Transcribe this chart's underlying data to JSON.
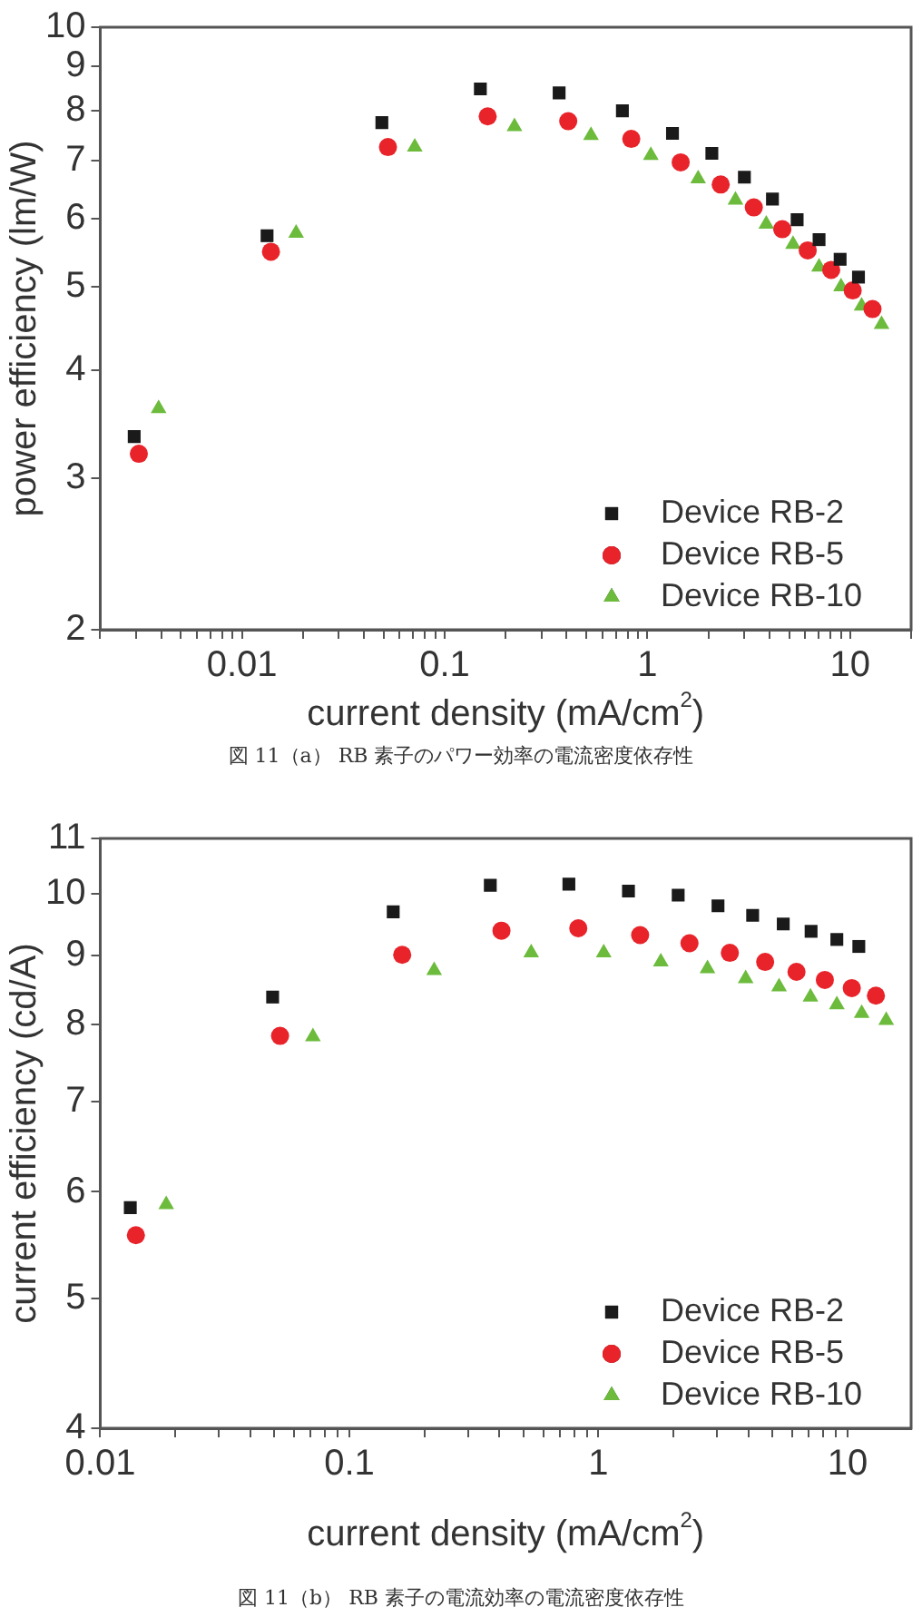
{
  "chart_data": [
    {
      "type": "scatter",
      "xlabel": "current density (mA/cm$^{2}$)",
      "ylabel": "power efficiency (lm/W)",
      "annotations": [
        "図 11（a） RB 素子のパワー効率の電流密度依存性"
      ],
      "log": "xy",
      "grid": false,
      "legend": "bottom right",
      "xlim": [
        0.002,
        20
      ],
      "ylim": [
        2,
        10
      ],
      "xticks": [
        {
          "value": 0.002,
          "label": null
        },
        {
          "value": 0.003,
          "label": null
        },
        {
          "value": 0.004,
          "label": null
        },
        {
          "value": 0.005,
          "label": null
        },
        {
          "value": 0.006,
          "label": null
        },
        {
          "value": 0.007,
          "label": null
        },
        {
          "value": 0.008,
          "label": null
        },
        {
          "value": 0.009,
          "label": null
        },
        0.01,
        {
          "value": 0.02,
          "label": null
        },
        {
          "value": 0.03,
          "label": null
        },
        {
          "value": 0.04,
          "label": null
        },
        {
          "value": 0.05,
          "label": null
        },
        {
          "value": 0.06,
          "label": null
        },
        {
          "value": 0.07,
          "label": null
        },
        {
          "value": 0.08,
          "label": null
        },
        {
          "value": 0.09,
          "label": null
        },
        0.1,
        {
          "value": 0.2,
          "label": null
        },
        {
          "value": 0.3,
          "label": null
        },
        {
          "value": 0.4,
          "label": null
        },
        {
          "value": 0.5,
          "label": null
        },
        {
          "value": 0.6,
          "label": null
        },
        {
          "value": 0.7,
          "label": null
        },
        {
          "value": 0.8,
          "label": null
        },
        {
          "value": 0.9,
          "label": null
        },
        1,
        {
          "value": 2,
          "label": null
        },
        {
          "value": 3,
          "label": null
        },
        {
          "value": 4,
          "label": null
        },
        {
          "value": 5,
          "label": null
        },
        {
          "value": 6,
          "label": null
        },
        {
          "value": 7,
          "label": null
        },
        {
          "value": 8,
          "label": null
        },
        {
          "value": 9,
          "label": null
        },
        10,
        {
          "value": 20,
          "label": null
        }
      ],
      "yticks": [
        2,
        3,
        4,
        5,
        6,
        7,
        8,
        9,
        10
      ],
      "series": [
        {
          "name": "Device RB-2",
          "color": "#1a1a1a",
          "marker": "square",
          "x": [
            0.00294,
            0.0133,
            0.049,
            0.15,
            0.367,
            0.753,
            1.33,
            2.08,
            3.01,
            4.14,
            5.48,
            7.03,
            8.93,
            11.0
          ],
          "values": [
            3.35,
            5.73,
            7.75,
            8.48,
            8.39,
            8.0,
            7.53,
            7.14,
            6.7,
            6.32,
            5.98,
            5.67,
            5.38,
            5.13
          ]
        },
        {
          "name": "Device RB-5",
          "color": "#e8232a",
          "marker": "circle",
          "x": [
            0.0031,
            0.0139,
            0.0525,
            0.163,
            0.407,
            0.833,
            1.46,
            2.3,
            3.35,
            4.63,
            6.18,
            8.07,
            10.3,
            12.9
          ],
          "values": [
            3.2,
            5.49,
            7.26,
            7.88,
            7.78,
            7.42,
            6.97,
            6.57,
            6.18,
            5.83,
            5.51,
            5.23,
            4.95,
            4.71
          ]
        },
        {
          "name": "Device RB-10",
          "color": "#6cbb3c",
          "marker": "triangle",
          "x": [
            0.00388,
            0.0185,
            0.0712,
            0.221,
            0.527,
            1.04,
            1.78,
            2.72,
            3.86,
            5.23,
            7.03,
            9.02,
            11.4,
            14.3
          ],
          "values": [
            3.61,
            5.77,
            7.26,
            7.67,
            7.49,
            7.1,
            6.67,
            6.3,
            5.91,
            5.6,
            5.27,
            5.0,
            4.75,
            4.52
          ]
        }
      ]
    },
    {
      "type": "scatter",
      "xlabel": "current density (mA/cm$^{2}$)",
      "ylabel": "current efficiency (cd/A)",
      "annotations": [
        "図 11（b） RB 素子の電流効率の電流密度依存性"
      ],
      "log": "xy",
      "grid": false,
      "legend": "bottom right",
      "xlim": [
        0.01,
        18
      ],
      "ylim": [
        4,
        11
      ],
      "xticks": [
        0.01,
        {
          "value": 0.02,
          "label": null
        },
        {
          "value": 0.03,
          "label": null
        },
        {
          "value": 0.04,
          "label": null
        },
        {
          "value": 0.05,
          "label": null
        },
        {
          "value": 0.06,
          "label": null
        },
        {
          "value": 0.07,
          "label": null
        },
        {
          "value": 0.08,
          "label": null
        },
        {
          "value": 0.09,
          "label": null
        },
        0.1,
        {
          "value": 0.2,
          "label": null
        },
        {
          "value": 0.3,
          "label": null
        },
        {
          "value": 0.4,
          "label": null
        },
        {
          "value": 0.5,
          "label": null
        },
        {
          "value": 0.6,
          "label": null
        },
        {
          "value": 0.7,
          "label": null
        },
        {
          "value": 0.8,
          "label": null
        },
        {
          "value": 0.9,
          "label": null
        },
        1,
        {
          "value": 2,
          "label": null
        },
        {
          "value": 3,
          "label": null
        },
        {
          "value": 4,
          "label": null
        },
        {
          "value": 5,
          "label": null
        },
        {
          "value": 6,
          "label": null
        },
        {
          "value": 7,
          "label": null
        },
        {
          "value": 8,
          "label": null
        },
        {
          "value": 9,
          "label": null
        },
        10
      ],
      "yticks": [
        4,
        5,
        6,
        7,
        8,
        9,
        10,
        11
      ],
      "series": [
        {
          "name": "Device RB-2",
          "color": "#1a1a1a",
          "marker": "square",
          "x": [
            0.0132,
            0.0492,
            0.15,
            0.368,
            0.761,
            1.32,
            2.09,
            3.02,
            4.16,
            5.52,
            7.14,
            9.06,
            11.1
          ],
          "values": [
            5.84,
            8.38,
            9.7,
            10.15,
            10.17,
            10.05,
            9.98,
            9.8,
            9.64,
            9.5,
            9.38,
            9.25,
            9.14
          ]
        },
        {
          "name": "Device RB-5",
          "color": "#e8232a",
          "marker": "circle",
          "x": [
            0.0139,
            0.0527,
            0.163,
            0.408,
            0.83,
            1.47,
            2.32,
            3.37,
            4.67,
            6.24,
            8.11,
            10.4,
            13.0
          ],
          "values": [
            5.57,
            7.84,
            9.01,
            9.39,
            9.43,
            9.32,
            9.19,
            9.04,
            8.9,
            8.75,
            8.63,
            8.51,
            8.4
          ]
        },
        {
          "name": "Device RB-10",
          "color": "#6cbb3c",
          "marker": "triangle",
          "x": [
            0.0184,
            0.0714,
            0.219,
            0.537,
            1.05,
            1.78,
            2.74,
            3.9,
            5.31,
            7.1,
            9.06,
            11.4,
            14.3
          ],
          "values": [
            5.87,
            7.83,
            8.77,
            9.04,
            9.04,
            8.9,
            8.8,
            8.65,
            8.53,
            8.38,
            8.27,
            8.15,
            8.05
          ]
        }
      ]
    }
  ]
}
